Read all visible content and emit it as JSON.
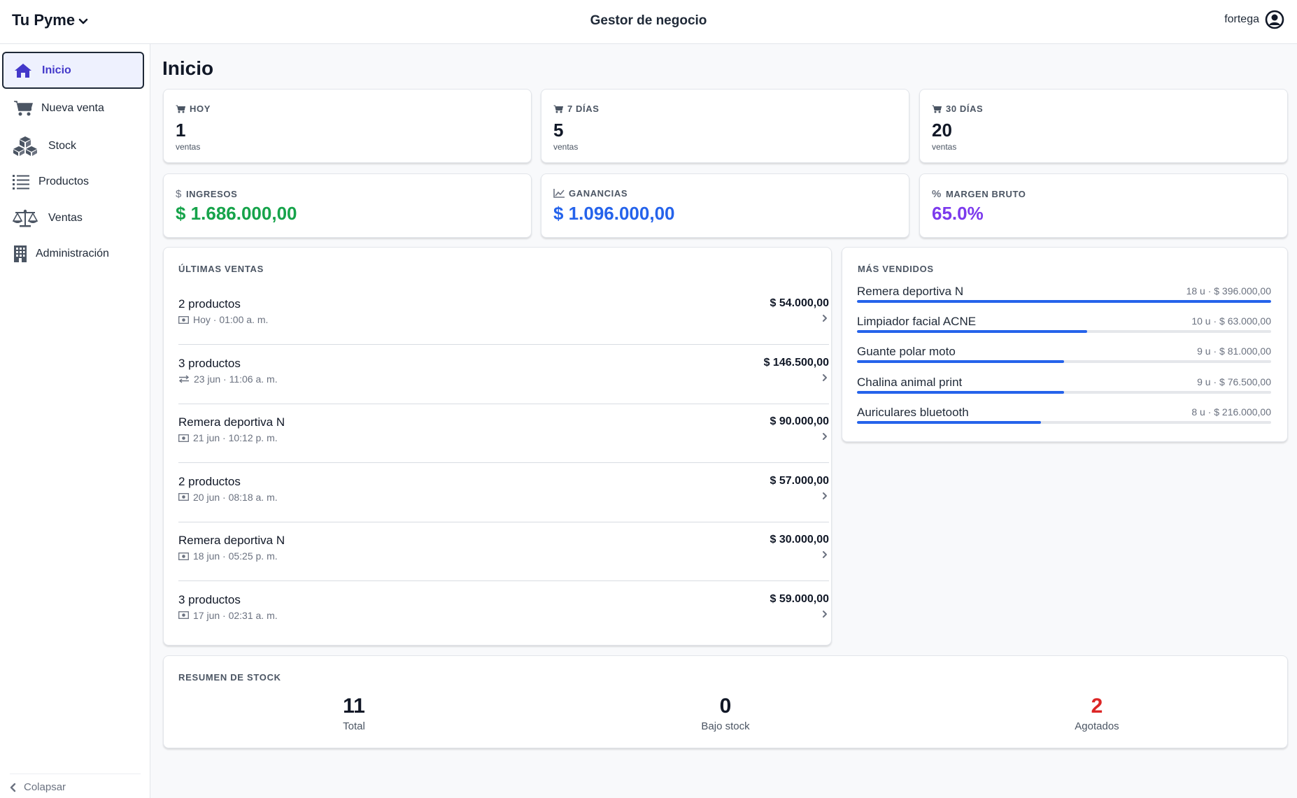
{
  "header": {
    "brand": "Tu Pyme",
    "title": "Gestor de negocio",
    "user": "fortega"
  },
  "sidebar": {
    "items": [
      {
        "label": "Inicio",
        "icon": "home-icon",
        "active": true
      },
      {
        "label": "Nueva venta",
        "icon": "cart-icon"
      },
      {
        "label": "Stock",
        "icon": "boxes-icon"
      },
      {
        "label": "Productos",
        "icon": "list-icon"
      },
      {
        "label": "Ventas",
        "icon": "scale-icon"
      },
      {
        "label": "Administración",
        "icon": "building-icon"
      }
    ],
    "collapse": "Colapsar"
  },
  "page": {
    "title": "Inicio"
  },
  "stats": [
    {
      "label": "HOY",
      "value": "1",
      "sub": "ventas",
      "icon": "cart-icon"
    },
    {
      "label": "7 DÍAS",
      "value": "5",
      "sub": "ventas",
      "icon": "cart-icon"
    },
    {
      "label": "30 DÍAS",
      "value": "20",
      "sub": "ventas",
      "icon": "cart-icon"
    }
  ],
  "money": [
    {
      "label": "INGRESOS",
      "value": "$ 1.686.000,00",
      "icon": "dollar-icon",
      "color": "#16a34a"
    },
    {
      "label": "GANANCIAS",
      "value": "$ 1.096.000,00",
      "icon": "chart-line-icon",
      "color": "#2563eb"
    },
    {
      "label": "MARGEN BRUTO",
      "value": "65.0%",
      "icon": "percent-icon",
      "color": "#7c3aed"
    }
  ],
  "latest_sales": {
    "title": "ÚLTIMAS VENTAS",
    "items": [
      {
        "name": "2 productos",
        "meta": "Hoy · 01:00 a. m.",
        "amount": "$ 54.000,00",
        "method_icon": "cash-icon"
      },
      {
        "name": "3 productos",
        "meta": "23 jun · 11:06 a. m.",
        "amount": "$ 146.500,00",
        "method_icon": "transfer-icon"
      },
      {
        "name": "Remera deportiva N",
        "meta": "21 jun · 10:12 p. m.",
        "amount": "$ 90.000,00",
        "method_icon": "cash-icon"
      },
      {
        "name": "2 productos",
        "meta": "20 jun · 08:18 a. m.",
        "amount": "$ 57.000,00",
        "method_icon": "cash-icon"
      },
      {
        "name": "Remera deportiva N",
        "meta": "18 jun · 05:25 p. m.",
        "amount": "$ 30.000,00",
        "method_icon": "cash-icon"
      },
      {
        "name": "3 productos",
        "meta": "17 jun · 02:31 a. m.",
        "amount": "$ 59.000,00",
        "method_icon": "cash-icon"
      }
    ]
  },
  "best_sellers": {
    "title": "MÁS VENDIDOS",
    "items": [
      {
        "name": "Remera deportiva N",
        "meta": "18 u · $ 396.000,00",
        "units": 18,
        "fraction": 1.0
      },
      {
        "name": "Limpiador facial ACNE",
        "meta": "10 u · $ 63.000,00",
        "units": 10,
        "fraction": 0.556
      },
      {
        "name": "Guante polar moto",
        "meta": "9 u · $ 81.000,00",
        "units": 9,
        "fraction": 0.5
      },
      {
        "name": "Chalina animal print",
        "meta": "9 u · $ 76.500,00",
        "units": 9,
        "fraction": 0.5
      },
      {
        "name": "Auriculares bluetooth",
        "meta": "8 u · $ 216.000,00",
        "units": 8,
        "fraction": 0.444
      }
    ]
  },
  "stock_summary": {
    "title": "RESUMEN DE STOCK",
    "total": {
      "value": "11",
      "label": "Total"
    },
    "low": {
      "value": "0",
      "label": "Bajo stock"
    },
    "out": {
      "value": "2",
      "label": "Agotados",
      "color": "#dc2626"
    }
  },
  "colors": {
    "accent": "#4338ca",
    "bar": "#2563eb",
    "income": "#16a34a",
    "profit": "#2563eb",
    "margin": "#7c3aed",
    "out_of_stock": "#dc2626"
  }
}
